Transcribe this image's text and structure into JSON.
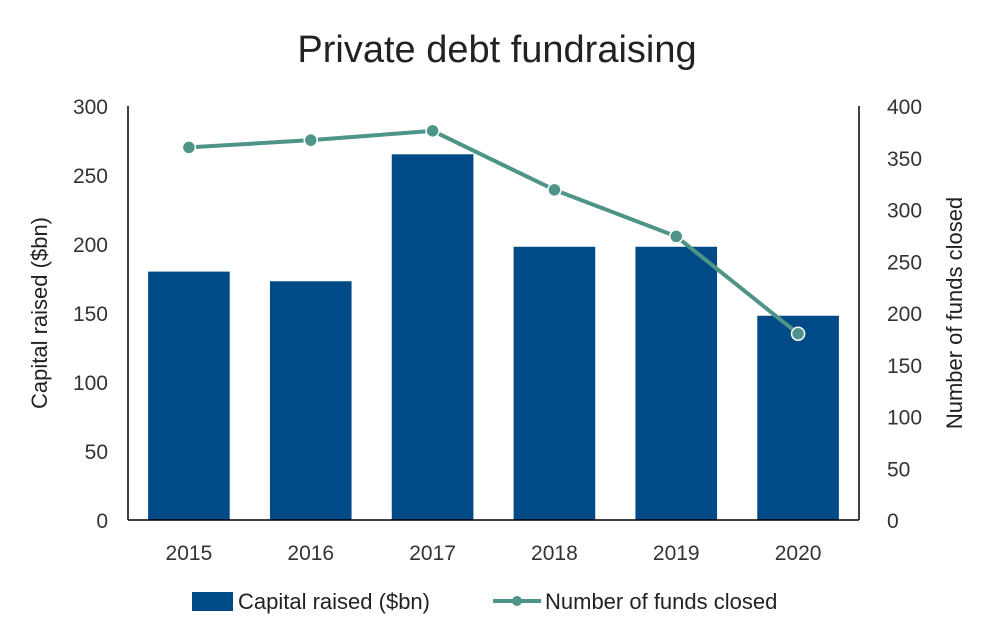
{
  "chart_data": {
    "type": "bar",
    "title": "Private debt fundraising",
    "categories": [
      "2015",
      "2016",
      "2017",
      "2018",
      "2019",
      "2020"
    ],
    "series": [
      {
        "name": "Capital raised ($bn)",
        "type": "bar",
        "axis": "left",
        "values": [
          180,
          173,
          265,
          198,
          198,
          148
        ],
        "color": "#004b87"
      },
      {
        "name": "Number of funds closed",
        "type": "line",
        "axis": "right",
        "values": [
          360,
          367,
          376,
          319,
          274,
          180
        ],
        "color": "#4e9488"
      }
    ],
    "ylabel": "Capital raised ($bn)",
    "y2label": "Number of funds closed",
    "ylim": [
      0,
      300
    ],
    "y2lim": [
      0,
      400
    ],
    "yticks": [
      "0",
      "50",
      "100",
      "150",
      "200",
      "250",
      "300"
    ],
    "y2ticks": [
      "0",
      "50",
      "100",
      "150",
      "200",
      "250",
      "300",
      "350",
      "400"
    ],
    "grid": false,
    "legend": "bottom"
  }
}
